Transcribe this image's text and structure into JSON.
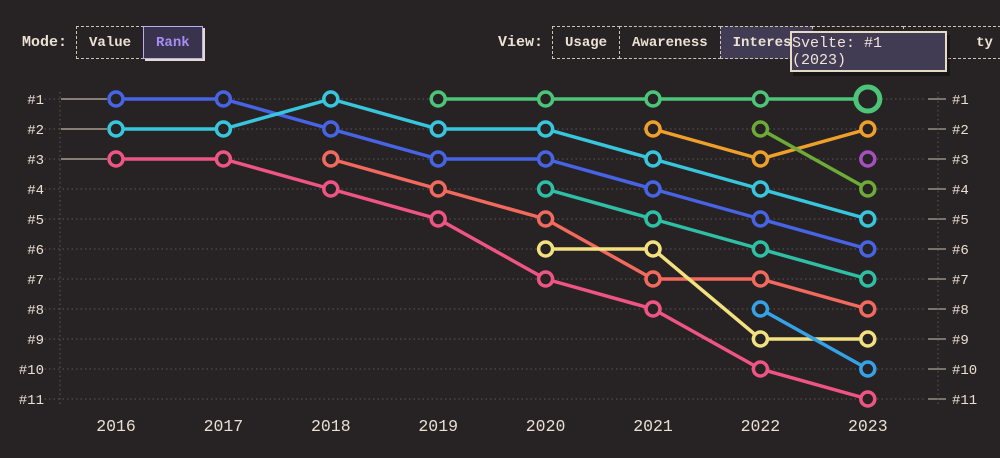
{
  "page": {
    "background": "#272224",
    "text_color": "#e9dfd2"
  },
  "header": {
    "mode": {
      "label": "Mode:",
      "options": [
        {
          "label": "Value",
          "selected": false
        },
        {
          "label": "Rank",
          "selected": true
        }
      ]
    },
    "view": {
      "label": "View:",
      "options": [
        {
          "label": "Usage",
          "selected": false
        },
        {
          "label": "Awareness",
          "selected": false
        },
        {
          "label": "Interest",
          "selected": true
        },
        {
          "label": "",
          "selected": false,
          "covered_by_tooltip": true
        },
        {
          "label": "ty",
          "selected": false,
          "partially_covered_by_tooltip": true
        }
      ]
    }
  },
  "tooltip": {
    "text": "Svelte: #1 (2023)"
  },
  "chart_data": {
    "type": "line",
    "subtype": "bump-rank-chart",
    "x": [
      2016,
      2017,
      2018,
      2019,
      2020,
      2021,
      2022,
      2023
    ],
    "y_axis": {
      "labels": [
        "#1",
        "#2",
        "#3",
        "#4",
        "#5",
        "#6",
        "#7",
        "#8",
        "#9",
        "#10",
        "#11"
      ],
      "inverted": true,
      "range": [
        1,
        11
      ]
    },
    "grid": "dotted-horizontal",
    "marker": "open-circle",
    "highlight": {
      "series": "svelte",
      "year": 2023,
      "rank": 1
    },
    "series": [
      {
        "name": "blue",
        "color": "#4664e4",
        "start_year": 2016,
        "ranks": [
          1,
          1,
          2,
          3,
          3,
          4,
          5,
          6
        ]
      },
      {
        "name": "cyan",
        "color": "#38c6dc",
        "start_year": 2016,
        "ranks": [
          2,
          2,
          1,
          2,
          2,
          3,
          4,
          5
        ]
      },
      {
        "name": "pink",
        "color": "#ee5585",
        "start_year": 2016,
        "ranks": [
          3,
          3,
          4,
          5,
          7,
          8,
          10,
          11
        ]
      },
      {
        "name": "salmon",
        "color": "#f2695e",
        "start_year": 2018,
        "ranks": [
          3,
          4,
          5,
          7,
          7,
          8
        ]
      },
      {
        "name": "svelte",
        "color": "#4dc579",
        "start_year": 2019,
        "ranks": [
          1,
          1,
          1,
          1,
          1
        ],
        "highlight_last": true
      },
      {
        "name": "teal",
        "color": "#2ebfa5",
        "start_year": 2020,
        "ranks": [
          4,
          5,
          6,
          7
        ]
      },
      {
        "name": "yellow",
        "color": "#f3e180",
        "start_year": 2020,
        "ranks": [
          6,
          6,
          9,
          9
        ]
      },
      {
        "name": "orange",
        "color": "#efa02b",
        "start_year": 2021,
        "ranks": [
          2,
          3,
          2
        ]
      },
      {
        "name": "lime",
        "color": "#6cab38",
        "start_year": 2022,
        "ranks": [
          2,
          4
        ]
      },
      {
        "name": "skyblue",
        "color": "#35a2e8",
        "start_year": 2022,
        "ranks": [
          8,
          10
        ]
      },
      {
        "name": "purple",
        "color": "#a64fbf",
        "start_year": 2023,
        "ranks": [
          3
        ]
      }
    ]
  }
}
